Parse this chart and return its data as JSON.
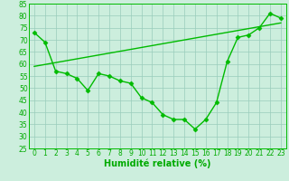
{
  "xlabel": "Humidité relative (%)",
  "xlim": [
    -0.5,
    23.5
  ],
  "ylim": [
    25,
    85
  ],
  "yticks": [
    25,
    30,
    35,
    40,
    45,
    50,
    55,
    60,
    65,
    70,
    75,
    80,
    85
  ],
  "xticks": [
    0,
    1,
    2,
    3,
    4,
    5,
    6,
    7,
    8,
    9,
    10,
    11,
    12,
    13,
    14,
    15,
    16,
    17,
    18,
    19,
    20,
    21,
    22,
    23
  ],
  "main_x": [
    0,
    1,
    2,
    3,
    4,
    5,
    6,
    7,
    8,
    9,
    10,
    11,
    12,
    13,
    14,
    15,
    16,
    17,
    18,
    19,
    20,
    21,
    22,
    23
  ],
  "main_y": [
    73,
    69,
    57,
    56,
    54,
    49,
    56,
    55,
    53,
    52,
    46,
    44,
    39,
    37,
    37,
    33,
    37,
    44,
    61,
    71,
    72,
    75,
    81,
    79
  ],
  "trend_x": [
    0,
    23
  ],
  "trend_y": [
    59,
    77
  ],
  "line_color": "#00bb00",
  "bg_color": "#cceedd",
  "grid_color": "#99ccbb",
  "marker": "D",
  "marker_size": 2.5,
  "line_width": 1.0,
  "xlabel_fontsize": 7,
  "tick_fontsize": 5.5,
  "xlabel_color": "#00aa00",
  "tick_color": "#00aa00"
}
